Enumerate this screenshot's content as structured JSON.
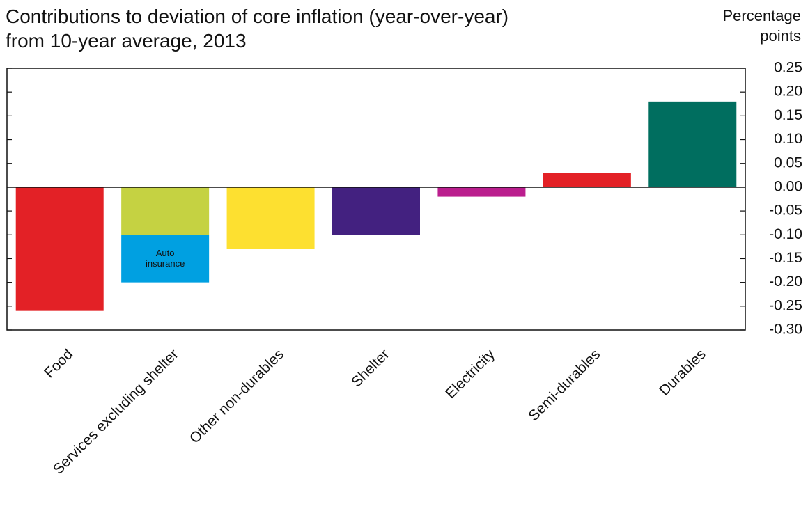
{
  "chart_data": {
    "type": "bar",
    "title_line1": "Contributions to deviation of core inflation (year-over-year)",
    "title_line2": "from 10-year average, 2013",
    "unit_line1": "Percentage",
    "unit_line2": "points",
    "ylim": [
      -0.3,
      0.25
    ],
    "yticks": [
      "0.25",
      "0.20",
      "0.15",
      "0.10",
      "0.05",
      "0.00",
      "-0.05",
      "-0.10",
      "-0.15",
      "-0.20",
      "-0.25",
      "-0.30"
    ],
    "categories": [
      "Food",
      "Services excluding shelter",
      "Other non-durables",
      "Shelter",
      "Electricity",
      "Semi-durables",
      "Durables"
    ],
    "bars": [
      {
        "category": "Food",
        "segments": [
          {
            "label": "",
            "value": -0.26,
            "color": "#e32126"
          }
        ]
      },
      {
        "category": "Services excluding shelter",
        "segments": [
          {
            "label": "",
            "value": -0.1,
            "color": "#c5d242"
          },
          {
            "label": "Auto\ninsurance",
            "value": -0.1,
            "color": "#00a0e1"
          }
        ]
      },
      {
        "category": "Other non-durables",
        "segments": [
          {
            "label": "",
            "value": -0.13,
            "color": "#fde030"
          }
        ]
      },
      {
        "category": "Shelter",
        "segments": [
          {
            "label": "",
            "value": -0.1,
            "color": "#432180"
          }
        ]
      },
      {
        "category": "Electricity",
        "segments": [
          {
            "label": "",
            "value": -0.02,
            "color": "#bb1e8e"
          }
        ]
      },
      {
        "category": "Semi-durables",
        "segments": [
          {
            "label": "",
            "value": 0.03,
            "color": "#e32126"
          }
        ]
      },
      {
        "category": "Durables",
        "segments": [
          {
            "label": "",
            "value": 0.18,
            "color": "#006e5f"
          }
        ]
      }
    ]
  }
}
